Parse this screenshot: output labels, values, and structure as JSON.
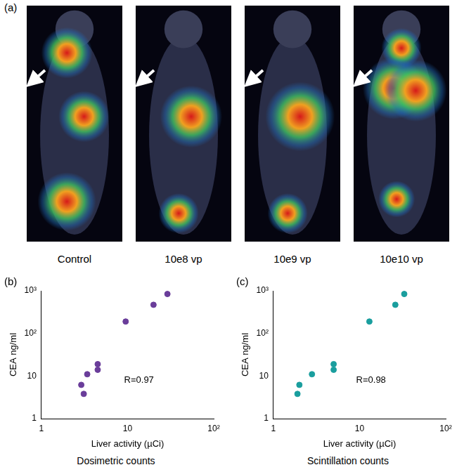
{
  "panel_a": {
    "label": "(a)",
    "images": [
      "Control",
      "10e8 vp",
      "10e9 vp",
      "10e10 vp"
    ]
  },
  "chart_data": [
    {
      "panel": "(b)",
      "type": "scatter",
      "xlabel": "Liver activity (µCi)",
      "ylabel": "CEA ng/ml",
      "x": [
        2.9,
        3.1,
        3.4,
        4.5,
        4.5,
        9.5,
        20,
        29
      ],
      "values": [
        6.2,
        3.8,
        11,
        14,
        19,
        190,
        470,
        840
      ],
      "color": "#6a3d9a",
      "marker": "circle",
      "log": true,
      "xlim": [
        1,
        100
      ],
      "ylim": [
        1,
        1000
      ],
      "xticks": [
        1,
        10,
        {
          "value": 100,
          "label": "10²"
        }
      ],
      "yticks": [
        1,
        10,
        {
          "value": 100,
          "label": "10²"
        },
        {
          "value": 1000,
          "label": "10³"
        }
      ],
      "grid": false,
      "annotation": "R=0.97",
      "caption": "Dosimetric counts"
    },
    {
      "panel": "(c)",
      "type": "scatter",
      "xlabel": "Liver activity (µCi)",
      "ylabel": "CEA ng/ml",
      "x": [
        1.9,
        2.0,
        2.8,
        5.0,
        5.0,
        13,
        26,
        33
      ],
      "values": [
        3.8,
        6.2,
        11,
        14,
        19,
        190,
        470,
        840
      ],
      "color": "#1a9e9e",
      "marker": "circle",
      "log": true,
      "xlim": [
        1,
        100
      ],
      "ylim": [
        1,
        1000
      ],
      "xticks": [
        1,
        10,
        {
          "value": 100,
          "label": "10²"
        }
      ],
      "yticks": [
        1,
        10,
        {
          "value": 100,
          "label": "10²"
        },
        {
          "value": 1000,
          "label": "10³"
        }
      ],
      "grid": false,
      "annotation": "R=0.98",
      "caption": "Scintillation counts"
    }
  ]
}
